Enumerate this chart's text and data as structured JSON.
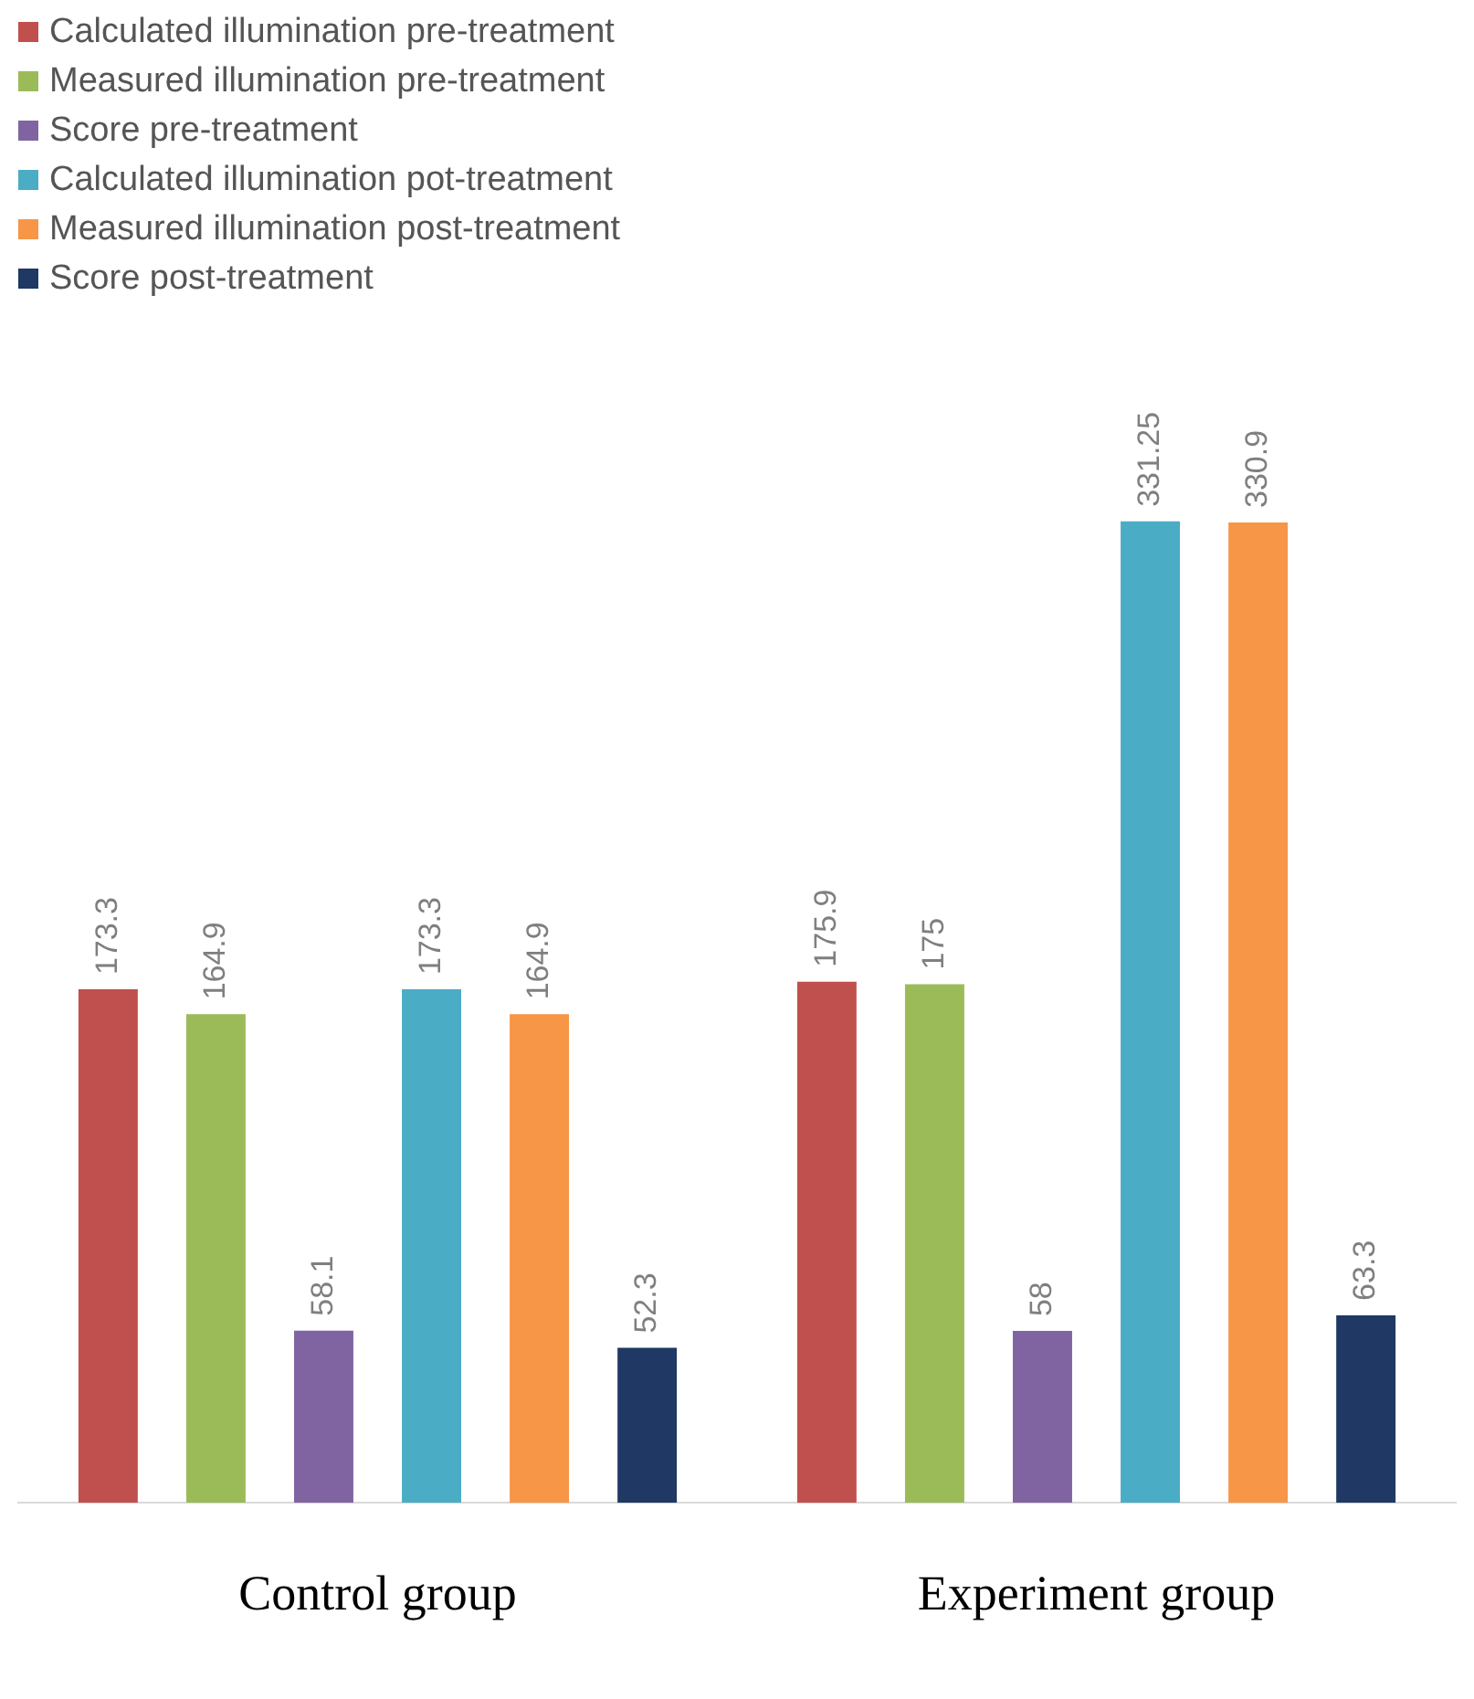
{
  "chart_data": {
    "type": "bar",
    "categories": [
      "Control group",
      "Experiment group"
    ],
    "series": [
      {
        "name": "Calculated illumination pre-treatment",
        "color": "#c0504d",
        "values": [
          173.3,
          175.9
        ]
      },
      {
        "name": "Measured illumination pre-treatment",
        "color": "#9bbb59",
        "values": [
          164.9,
          175
        ]
      },
      {
        "name": "Score pre-treatment",
        "color": "#8064a2",
        "values": [
          58.1,
          58
        ]
      },
      {
        "name": "Calculated illumination pot-treatment",
        "color": "#4bacc6",
        "values": [
          173.3,
          331.25
        ]
      },
      {
        "name": "Measured illumination post-treatment",
        "color": "#f79646",
        "values": [
          164.9,
          330.9
        ]
      },
      {
        "name": "Score post-treatment",
        "color": "#1f3864",
        "values": [
          52.3,
          63.3
        ]
      }
    ],
    "data_labels": true,
    "legend": "top left",
    "grid": false,
    "tick_labels": "x"
  }
}
